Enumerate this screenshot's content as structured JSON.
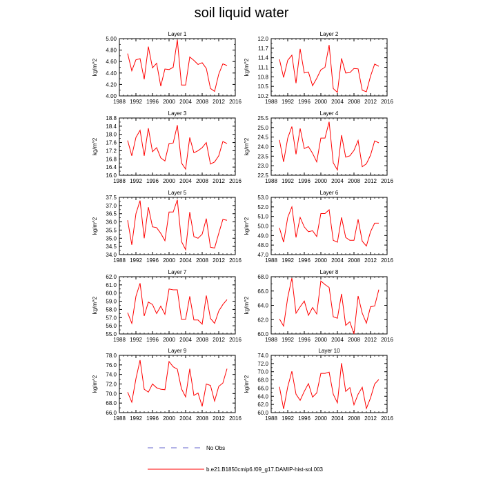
{
  "title": "soil liquid water",
  "chart_data": [
    {
      "type": "line",
      "title": "Layer 1",
      "ylabel": "kg/m^2",
      "xlim": [
        1988,
        2016
      ],
      "ylim": [
        4.0,
        5.0
      ],
      "yticks": [
        "4.00",
        "4.20",
        "4.40",
        "4.60",
        "4.80",
        "5.00"
      ],
      "x": [
        1990,
        1991,
        1992,
        1993,
        1994,
        1995,
        1996,
        1997,
        1998,
        1999,
        2000,
        2001,
        2002,
        2003,
        2004,
        2005,
        2006,
        2007,
        2008,
        2009,
        2010,
        2011,
        2012,
        2013,
        2014
      ],
      "series": [
        {
          "values": [
            4.74,
            4.44,
            4.63,
            4.65,
            4.29,
            4.86,
            4.49,
            4.57,
            4.17,
            4.47,
            4.46,
            4.5,
            4.98,
            4.19,
            4.19,
            4.68,
            4.62,
            4.55,
            4.58,
            4.48,
            4.13,
            4.08,
            4.38,
            4.56,
            4.53
          ]
        }
      ]
    },
    {
      "type": "line",
      "title": "Layer 2",
      "ylabel": "kg/m^2",
      "xlim": [
        1988,
        2016
      ],
      "ylim": [
        10.2,
        12.0
      ],
      "yticks": [
        "10.2",
        "10.5",
        "10.8",
        "11.1",
        "11.4",
        "11.7",
        "12.0"
      ],
      "x": [
        1990,
        1991,
        1992,
        1993,
        1994,
        1995,
        1996,
        1997,
        1998,
        1999,
        2000,
        2001,
        2002,
        2003,
        2004,
        2005,
        2006,
        2007,
        2008,
        2009,
        2010,
        2011,
        2012,
        2013,
        2014
      ],
      "series": [
        {
          "values": [
            11.35,
            10.78,
            11.32,
            11.48,
            10.6,
            11.68,
            10.92,
            10.95,
            10.52,
            10.75,
            11.02,
            11.1,
            11.8,
            10.43,
            10.31,
            11.38,
            10.92,
            10.93,
            11.06,
            11.05,
            10.38,
            10.33,
            10.82,
            11.2,
            11.13
          ]
        }
      ]
    },
    {
      "type": "line",
      "title": "Layer 3",
      "ylabel": "kg/m^2",
      "xlim": [
        1988,
        2016
      ],
      "ylim": [
        16.0,
        18.8
      ],
      "yticks": [
        "16.0",
        "16.4",
        "16.8",
        "17.2",
        "17.6",
        "18.0",
        "18.4",
        "18.8"
      ],
      "x": [
        1990,
        1991,
        1992,
        1993,
        1994,
        1995,
        1996,
        1997,
        1998,
        1999,
        2000,
        2001,
        2002,
        2003,
        2004,
        2005,
        2006,
        2007,
        2008,
        2009,
        2010,
        2011,
        2012,
        2013,
        2014
      ],
      "series": [
        {
          "values": [
            17.7,
            16.95,
            17.85,
            18.2,
            16.95,
            18.3,
            17.15,
            17.35,
            16.85,
            16.7,
            17.55,
            17.58,
            18.45,
            16.6,
            16.3,
            17.85,
            17.1,
            17.2,
            17.35,
            17.6,
            16.55,
            16.65,
            16.95,
            17.65,
            17.55
          ]
        }
      ]
    },
    {
      "type": "line",
      "title": "Layer 4",
      "ylabel": "kg/m^2",
      "xlim": [
        1988,
        2016
      ],
      "ylim": [
        22.5,
        25.5
      ],
      "yticks": [
        "22.5",
        "23.0",
        "23.5",
        "24.0",
        "24.5",
        "25.0",
        "25.5"
      ],
      "x": [
        1990,
        1991,
        1992,
        1993,
        1994,
        1995,
        1996,
        1997,
        1998,
        1999,
        2000,
        2001,
        2002,
        2003,
        2004,
        2005,
        2006,
        2007,
        2008,
        2009,
        2010,
        2011,
        2012,
        2013,
        2014
      ],
      "series": [
        {
          "values": [
            24.35,
            23.2,
            24.45,
            25.05,
            23.6,
            24.95,
            23.9,
            24.0,
            23.65,
            23.2,
            24.45,
            24.45,
            25.3,
            23.15,
            22.78,
            24.6,
            23.45,
            23.52,
            23.8,
            24.32,
            22.95,
            23.1,
            23.55,
            24.3,
            24.2
          ]
        }
      ]
    },
    {
      "type": "line",
      "title": "Layer 5",
      "ylabel": "kg/m^2",
      "xlim": [
        1988,
        2016
      ],
      "ylim": [
        34.0,
        37.5
      ],
      "yticks": [
        "34.0",
        "34.5",
        "35.0",
        "35.5",
        "36.0",
        "36.5",
        "37.0",
        "37.5"
      ],
      "x": [
        1990,
        1991,
        1992,
        1993,
        1994,
        1995,
        1996,
        1997,
        1998,
        1999,
        2000,
        2001,
        2002,
        2003,
        2004,
        2005,
        2006,
        2007,
        2008,
        2009,
        2010,
        2011,
        2012,
        2013,
        2014
      ],
      "series": [
        {
          "values": [
            36.1,
            34.6,
            36.5,
            37.3,
            35.0,
            36.9,
            35.7,
            35.65,
            35.3,
            34.85,
            36.6,
            36.6,
            37.35,
            34.8,
            34.3,
            36.6,
            35.1,
            35.0,
            35.25,
            36.2,
            34.45,
            34.4,
            35.3,
            36.15,
            36.1
          ]
        }
      ]
    },
    {
      "type": "line",
      "title": "Layer 6",
      "ylabel": "kg/m^2",
      "xlim": [
        1988,
        2016
      ],
      "ylim": [
        47.0,
        53.0
      ],
      "yticks": [
        "47.0",
        "48.0",
        "49.0",
        "50.0",
        "51.0",
        "52.0",
        "53.0"
      ],
      "x": [
        1990,
        1991,
        1992,
        1993,
        1994,
        1995,
        1996,
        1997,
        1998,
        1999,
        2000,
        2001,
        2002,
        2003,
        2004,
        2005,
        2006,
        2007,
        2008,
        2009,
        2010,
        2011,
        2012,
        2013,
        2014
      ],
      "series": [
        {
          "values": [
            49.8,
            48.3,
            50.9,
            52.0,
            48.8,
            50.9,
            49.9,
            49.4,
            49.5,
            48.9,
            51.3,
            51.3,
            51.7,
            48.5,
            48.3,
            50.9,
            48.8,
            48.5,
            48.5,
            50.7,
            48.4,
            47.9,
            49.4,
            50.3,
            50.3
          ]
        }
      ]
    },
    {
      "type": "line",
      "title": "Layer 7",
      "ylabel": "kg/m^2",
      "xlim": [
        1988,
        2016
      ],
      "ylim": [
        55.0,
        62.0
      ],
      "yticks": [
        "55.0",
        "56.0",
        "57.0",
        "58.0",
        "59.0",
        "60.0",
        "61.0",
        "62.0"
      ],
      "x": [
        1990,
        1991,
        1992,
        1993,
        1994,
        1995,
        1996,
        1997,
        1998,
        1999,
        2000,
        2001,
        2002,
        2003,
        2004,
        2005,
        2006,
        2007,
        2008,
        2009,
        2010,
        2011,
        2012,
        2013,
        2014
      ],
      "series": [
        {
          "values": [
            57.6,
            56.3,
            59.6,
            61.2,
            57.2,
            58.9,
            58.6,
            57.5,
            58.4,
            57.4,
            60.5,
            60.4,
            60.4,
            56.8,
            56.8,
            59.6,
            56.7,
            56.7,
            56.2,
            59.7,
            56.9,
            56.3,
            57.8,
            58.6,
            59.2
          ]
        }
      ]
    },
    {
      "type": "line",
      "title": "Layer 8",
      "ylabel": "kg/m^2",
      "xlim": [
        1988,
        2016
      ],
      "ylim": [
        60.0,
        68.0
      ],
      "yticks": [
        "60.0",
        "62.0",
        "64.0",
        "66.0",
        "68.0"
      ],
      "x": [
        1990,
        1991,
        1992,
        1993,
        1994,
        1995,
        1996,
        1997,
        1998,
        1999,
        2000,
        2001,
        2002,
        2003,
        2004,
        2005,
        2006,
        2007,
        2008,
        2009,
        2010,
        2011,
        2012,
        2013,
        2014
      ],
      "series": [
        {
          "values": [
            62.1,
            61.1,
            65.1,
            67.8,
            62.9,
            63.8,
            64.6,
            62.6,
            63.7,
            62.8,
            67.4,
            66.9,
            66.5,
            62.4,
            62.2,
            65.6,
            61.2,
            61.7,
            60.0,
            65.3,
            62.9,
            61.5,
            63.8,
            63.9,
            66.2
          ]
        }
      ]
    },
    {
      "type": "line",
      "title": "Layer 9",
      "ylabel": "kg/m^2",
      "xlim": [
        1988,
        2016
      ],
      "ylim": [
        66.0,
        78.0
      ],
      "yticks": [
        "66.0",
        "68.0",
        "70.0",
        "72.0",
        "74.0",
        "76.0",
        "78.0"
      ],
      "x": [
        1990,
        1991,
        1992,
        1993,
        1994,
        1995,
        1996,
        1997,
        1998,
        1999,
        2000,
        2001,
        2002,
        2003,
        2004,
        2005,
        2006,
        2007,
        2008,
        2009,
        2010,
        2011,
        2012,
        2013,
        2014
      ],
      "series": [
        {
          "values": [
            70.3,
            68.2,
            73.1,
            77.0,
            70.9,
            70.3,
            72.0,
            71.2,
            70.9,
            70.8,
            76.7,
            75.6,
            75.1,
            71.0,
            69.3,
            75.2,
            69.6,
            70.1,
            67.3,
            72.0,
            71.7,
            68.4,
            71.5,
            72.2,
            75.2
          ]
        }
      ]
    },
    {
      "type": "line",
      "title": "Layer 10",
      "ylabel": "kg/m^2",
      "xlim": [
        1988,
        2016
      ],
      "ylim": [
        60.0,
        74.0
      ],
      "yticks": [
        "60.0",
        "62.0",
        "64.0",
        "66.0",
        "68.0",
        "70.0",
        "72.0",
        "74.0"
      ],
      "x": [
        1990,
        1991,
        1992,
        1993,
        1994,
        1995,
        1996,
        1997,
        1998,
        1999,
        2000,
        2001,
        2002,
        2003,
        2004,
        2005,
        2006,
        2007,
        2008,
        2009,
        2010,
        2011,
        2012,
        2013,
        2014
      ],
      "series": [
        {
          "values": [
            66.3,
            60.9,
            66.3,
            70.1,
            64.5,
            63.0,
            65.2,
            67.1,
            63.8,
            64.8,
            69.6,
            69.6,
            69.9,
            64.5,
            62.4,
            72.1,
            65.2,
            66.1,
            61.9,
            64.5,
            66.2,
            61.0,
            63.6,
            67.0,
            68.1
          ]
        }
      ]
    }
  ],
  "xticks": [
    "1988",
    "1992",
    "1996",
    "2000",
    "2004",
    "2008",
    "2012",
    "2016"
  ],
  "legend": {
    "obs_label": "No Obs",
    "case_label": "b.e21.B1850cmip6.f09_g17.DAMIP-hist-sol.003",
    "line_color": "#ff0000",
    "obs_color": "#6666cc"
  }
}
